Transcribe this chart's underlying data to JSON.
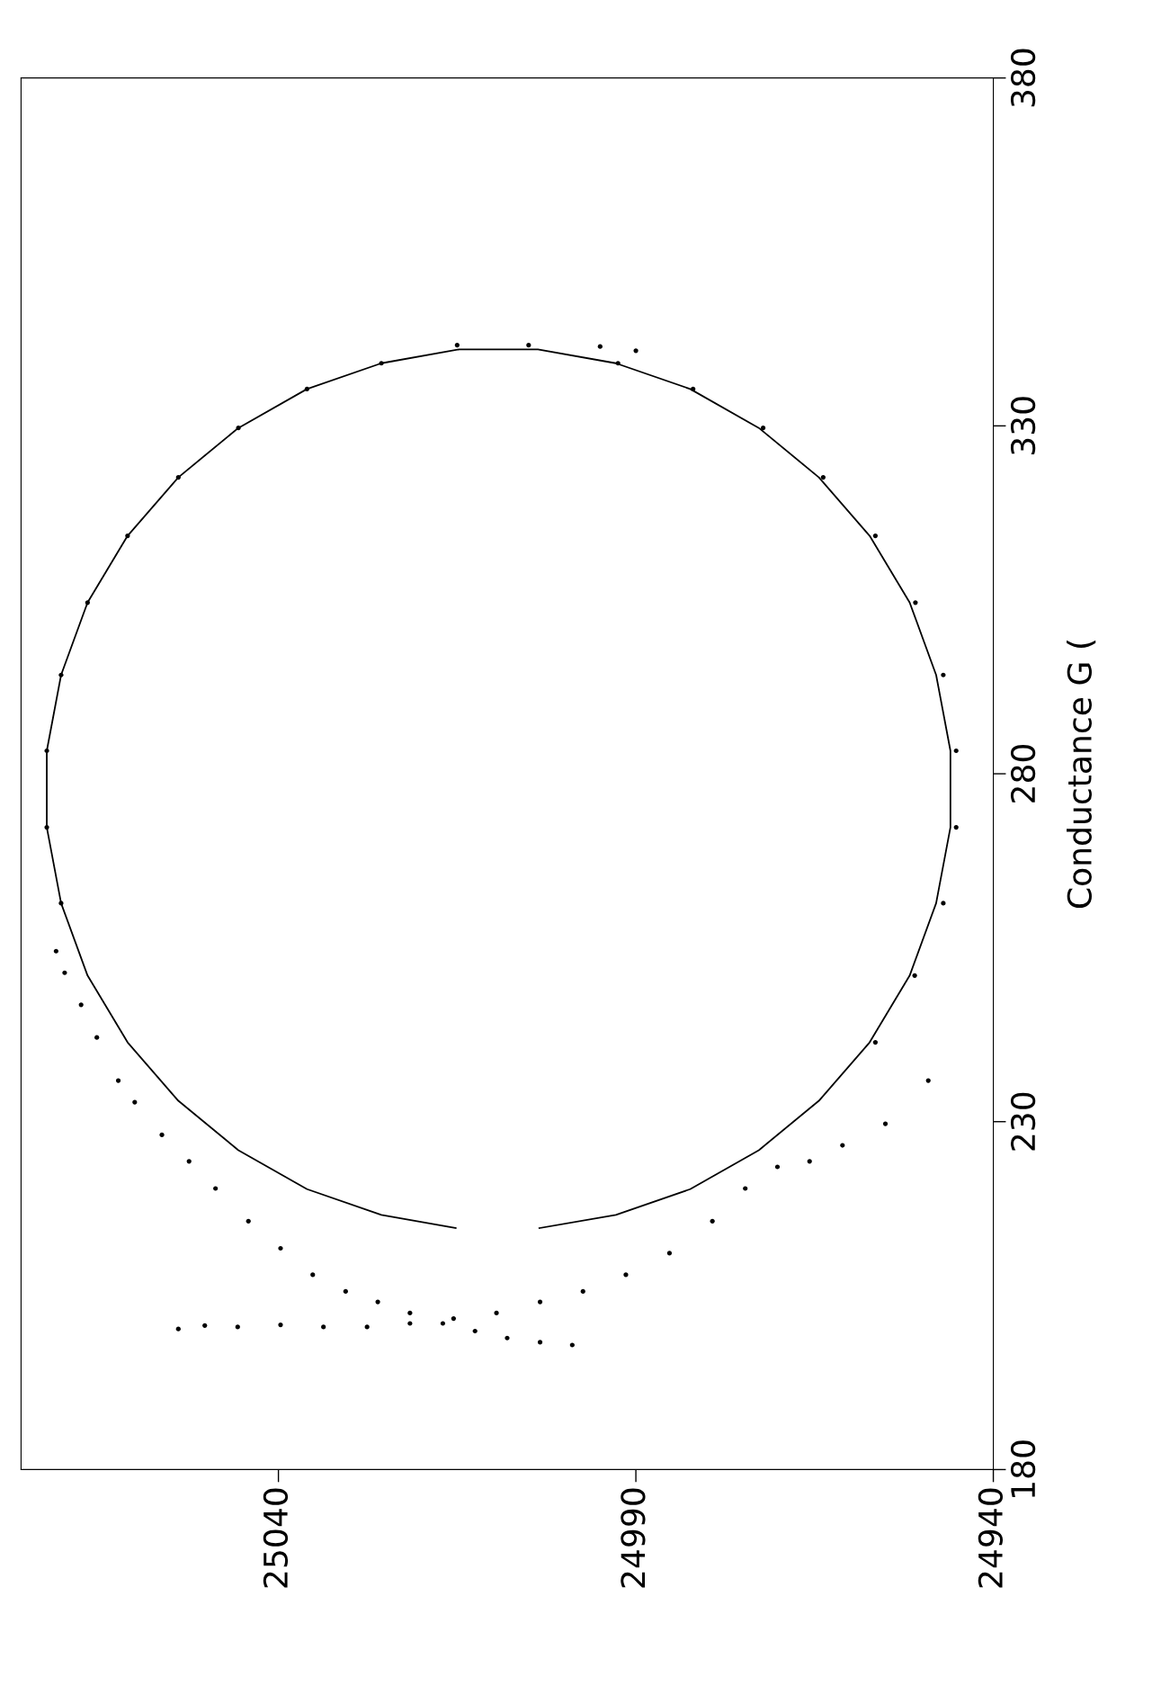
{
  "chart_data": {
    "type": "line",
    "ylabel": "Conductance G (",
    "ylim": [
      180,
      380
    ],
    "yticks": [
      180,
      230,
      280,
      330,
      380
    ],
    "xlim": [
      25076,
      24940
    ],
    "xticks": [
      25040,
      24990,
      24940
    ],
    "grid": false,
    "legend": false,
    "series": [
      {
        "color": "#000000",
        "values": [
          214.7,
          216.6,
          220.3,
          225.9,
          233.0,
          241.4,
          251.0,
          261.4,
          272.3,
          283.3,
          294.2,
          304.6,
          314.2,
          322.6,
          329.7,
          335.3,
          339.0,
          341.0,
          341.0,
          339.0,
          335.3,
          329.7,
          322.6,
          314.2,
          304.6,
          294.2,
          283.3,
          272.3,
          261.4,
          251.0,
          241.4,
          233.0,
          225.9,
          220.3,
          216.6,
          214.7
        ],
        "x": [
          25003.5,
          24992.8,
          24982.4,
          24972.8,
          24964.4,
          24957.3,
          24951.7,
          24948.0,
          24946.0,
          24946.0,
          24948.0,
          24951.7,
          24957.3,
          24964.4,
          24972.8,
          24982.4,
          24992.8,
          25003.7,
          25014.7,
          25025.6,
          25036.0,
          25045.6,
          25054.0,
          25061.1,
          25066.7,
          25070.4,
          25072.4,
          25072.4,
          25070.4,
          25066.7,
          25061.1,
          25054.0,
          25045.6,
          25036.0,
          25025.6,
          25015.2
        ]
      },
      {
        "type": "scatter",
        "color": "#000000",
        "marker": "circle",
        "values": [
          254.5,
          251.4,
          246.8,
          242.1,
          235.9,
          232.8,
          228.1,
          224.3,
          220.4,
          215.7,
          211.8,
          208.0,
          205.6,
          204.1,
          202.5,
          201.0,
          199.9,
          198.9,
          198.3,
          197.9,
          223.5,
          220.4,
          215.7,
          211.1,
          208.0,
          205.6,
          204.1,
          202.5,
          201.7,
          201.0,
          200.5,
          200.5,
          200.8,
          200.5,
          200.7,
          200.2,
          235.9,
          229.7,
          226.6,
          224.3,
          241.4,
          251.0,
          261.4,
          272.3,
          283.3,
          294.2,
          304.6,
          314.2,
          322.6,
          329.7,
          335.3,
          339.0,
          340.8,
          341.4,
          341.6,
          341.6,
          339.0,
          335.3,
          329.7,
          322.6,
          314.2,
          304.6,
          294.2,
          283.3,
          272.3,
          261.4
        ],
        "x": [
          25071.1,
          25069.9,
          25067.6,
          25065.4,
          25062.4,
          25060.1,
          25056.3,
          25052.5,
          25048.8,
          25044.2,
          25039.7,
          25035.2,
          25030.6,
          25026.1,
          25021.6,
          25017.0,
          25012.5,
          25008.0,
          25003.4,
          24998.9,
          24970.2,
          24974.7,
          24979.3,
          24985.3,
          24991.4,
          24997.4,
          25003.4,
          25009.5,
          25015.5,
          25021.6,
          25027.6,
          25033.7,
          25039.7,
          25045.7,
          25050.3,
          25054.0,
          24949.1,
          24955.1,
          24961.1,
          24965.7,
          24956.5,
          24951.0,
          24947.0,
          24945.2,
          24945.2,
          24947.0,
          24950.9,
          24956.5,
          24963.8,
          24972.2,
          24982.0,
          24992.5,
          24990.0,
          24995.0,
          25005.0,
          25015.0,
          25025.6,
          25036.0,
          25045.6,
          25054.0,
          25061.1,
          25066.7,
          25070.4,
          25072.4,
          25072.4,
          25070.4
        ]
      }
    ]
  }
}
